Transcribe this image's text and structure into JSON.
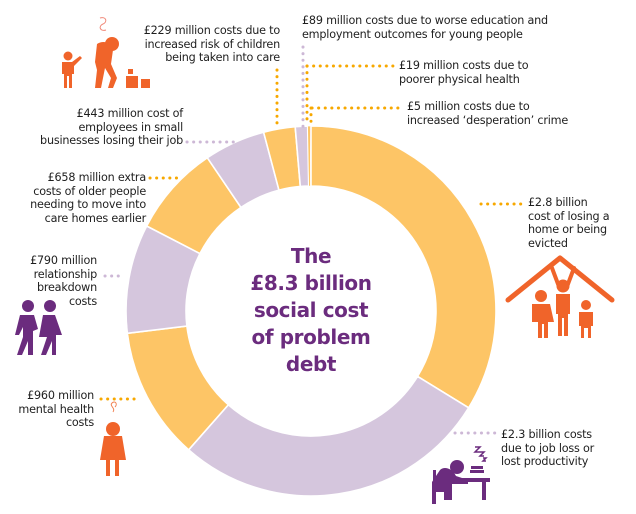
{
  "title": "The £8.3 billion social cost of problem debt",
  "center_lines": [
    "The",
    "£8.3 billion",
    "social cost",
    "of problem",
    "debt"
  ],
  "colors": {
    "yellow": "#FDC566",
    "lilac": "#D5C6DD",
    "purple": "#6B2C7E",
    "orange": "#F0642A",
    "dot_yellow": "#F7A800",
    "dot_lilac": "#CDB8D6"
  },
  "labels": {
    "home": [
      "£2.8 billion",
      "cost of losing a",
      "home or being",
      "evicted"
    ],
    "job": [
      "£2.3 billion costs",
      "due to job loss or",
      "lost productivity"
    ],
    "mental": [
      "£960 million",
      "mental health",
      "costs"
    ],
    "relationship": [
      "£790 million",
      "relationship",
      "breakdown",
      "costs"
    ],
    "older": [
      "£658 million extra",
      "costs of older people",
      "needing to move into",
      "care homes earlier"
    ],
    "employees": [
      "£443 million cost of",
      "employees in small",
      "businesses losing their job"
    ],
    "children": [
      "£229 million costs due to",
      "increased risk of children",
      "being taken into care"
    ],
    "education": [
      "£89 million costs due to worse education and",
      "employment outcomes for young people"
    ],
    "physical": [
      "£19 million costs due to",
      "poorer physical health"
    ],
    "crime": [
      "£5 million costs due to",
      "increased ‘desperation’ crime"
    ]
  },
  "icons": [
    "family-under-roof-icon",
    "sleeping-worker-at-desk-icon",
    "stressed-woman-icon",
    "walking-couple-icon",
    "stressed-parent-with-child-icon"
  ],
  "chart_data": {
    "type": "pie",
    "variant": "donut",
    "title": "The £8.3 billion social cost of problem debt",
    "unit": "£ million",
    "total": 8300,
    "start": "top, clockwise",
    "categories": [
      "Losing a home or being evicted",
      "Job loss or lost productivity",
      "Mental health costs",
      "Relationship breakdown costs",
      "Older people needing to move into care homes earlier",
      "Employees in small businesses losing their job",
      "Increased risk of children being taken into care",
      "Worse education and employment outcomes for young people",
      "Poorer physical health",
      "Increased 'desperation' crime"
    ],
    "values": [
      2800,
      2300,
      960,
      790,
      658,
      443,
      229,
      89,
      19,
      5
    ],
    "slice_colors": [
      "#FDC566",
      "#D5C6DD",
      "#FDC566",
      "#D5C6DD",
      "#FDC566",
      "#D5C6DD",
      "#FDC566",
      "#D5C6DD",
      "#FDC566",
      "#F0642A"
    ],
    "legend": "none (callout labels)"
  }
}
